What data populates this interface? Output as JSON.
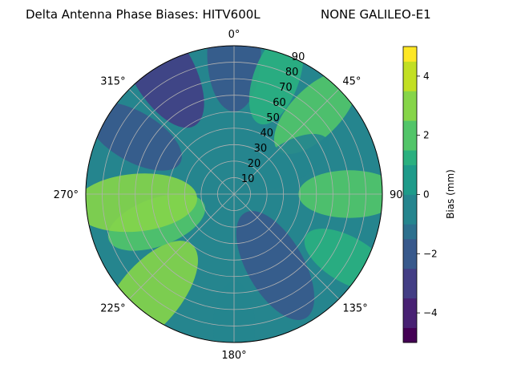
{
  "chart_data": {
    "type": "heatmap",
    "projection": "polar",
    "title": "Delta Antenna Phase Biases: HITV600L",
    "subtitle": "NONE GALILEO-E1",
    "theta_zero_location": "top",
    "theta_direction": "clockwise",
    "theta_tick_labels": [
      "0°",
      "45°",
      "90",
      "135°",
      "180°",
      "225°",
      "270°",
      "315°"
    ],
    "theta_ticks_deg": [
      0,
      45,
      90,
      135,
      180,
      225,
      270,
      315
    ],
    "r_ticks": [
      10,
      20,
      30,
      40,
      50,
      60,
      70,
      80,
      90
    ],
    "r_tick_labels": [
      "10",
      "20",
      "30",
      "40",
      "50",
      "60",
      "70",
      "80",
      "90"
    ],
    "r_range": [
      0,
      90
    ],
    "grid": true,
    "colorbar": {
      "label": "Bias (mm)",
      "range": [
        -5,
        5
      ],
      "levels": [
        -5,
        -4.5,
        -4,
        -3.5,
        -3,
        -2.5,
        -2,
        -1.5,
        -1,
        -0.5,
        0,
        0.5,
        1,
        1.5,
        2,
        2.5,
        3,
        3.5,
        4,
        4.5,
        5
      ],
      "ticks": [
        -4,
        -2,
        0,
        2,
        4
      ],
      "tick_labels": [
        "−4",
        "−2",
        "0",
        "2",
        "4"
      ],
      "colormap": "viridis",
      "band_colors": [
        "#440154",
        "#482173",
        "#433e85",
        "#38598c",
        "#2d708e",
        "#25858e",
        "#1e9b8a",
        "#2ab07f",
        "#52c569",
        "#86d549",
        "#c2df23",
        "#fde725"
      ],
      "placement": "right"
    },
    "field_samples": [
      {
        "azimuth": 0,
        "elevation_ring": 85,
        "bias": -2.2
      },
      {
        "azimuth": 20,
        "elevation_ring": 75,
        "bias": 1.4
      },
      {
        "azimuth": 45,
        "elevation_ring": 70,
        "bias": 1.8
      },
      {
        "azimuth": 60,
        "elevation_ring": 40,
        "bias": -0.8
      },
      {
        "azimuth": 90,
        "elevation_ring": 70,
        "bias": 1.6
      },
      {
        "azimuth": 120,
        "elevation_ring": 80,
        "bias": 1.4
      },
      {
        "azimuth": 150,
        "elevation_ring": 50,
        "bias": -2.5
      },
      {
        "azimuth": 180,
        "elevation_ring": 80,
        "bias": -1.0
      },
      {
        "azimuth": 220,
        "elevation_ring": 80,
        "bias": 3.0
      },
      {
        "azimuth": 250,
        "elevation_ring": 50,
        "bias": 1.6
      },
      {
        "azimuth": 265,
        "elevation_ring": 60,
        "bias": 2.6
      },
      {
        "azimuth": 300,
        "elevation_ring": 70,
        "bias": -1.8
      },
      {
        "azimuth": 330,
        "elevation_ring": 88,
        "bias": -3.0
      }
    ]
  },
  "colors": {
    "background": "#ffffff",
    "grid": "#b0b0b0",
    "base_field": "#25858e"
  }
}
